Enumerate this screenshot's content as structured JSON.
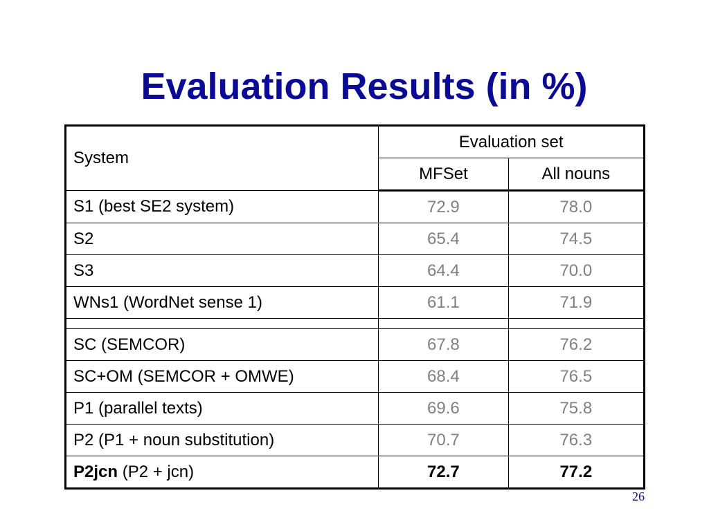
{
  "slide": {
    "title": "Evaluation Results (in %)",
    "page_number": "26",
    "title_color": "#0a0a96",
    "value_color": "#808080"
  },
  "table": {
    "system_header": "System",
    "group_header": "Evaluation set",
    "columns": [
      "MFSet",
      "All nouns"
    ],
    "rows": [
      {
        "system": "S1 (best SE2 system)",
        "mfset": "72.9",
        "all_nouns": "78.0"
      },
      {
        "system": "S2",
        "mfset": "65.4",
        "all_nouns": "74.5"
      },
      {
        "system": "S3",
        "mfset": "64.4",
        "all_nouns": "70.0"
      },
      {
        "system": "WNs1 (WordNet sense 1)",
        "mfset": "61.1",
        "all_nouns": "71.9"
      },
      {
        "system": "SC (SEMCOR)",
        "mfset": "67.8",
        "all_nouns": "76.2"
      },
      {
        "system": "SC+OM (SEMCOR + OMWE)",
        "mfset": "68.4",
        "all_nouns": "76.5"
      },
      {
        "system": "P1 (parallel texts)",
        "mfset": "69.6",
        "all_nouns": "75.8"
      },
      {
        "system": "P2 (P1 + noun substitution)",
        "mfset": "70.7",
        "all_nouns": "76.3"
      }
    ],
    "last_row": {
      "system_bold": "P2jcn",
      "system_rest": " (P2 + jcn)",
      "mfset": "72.7",
      "all_nouns": "77.2"
    }
  }
}
